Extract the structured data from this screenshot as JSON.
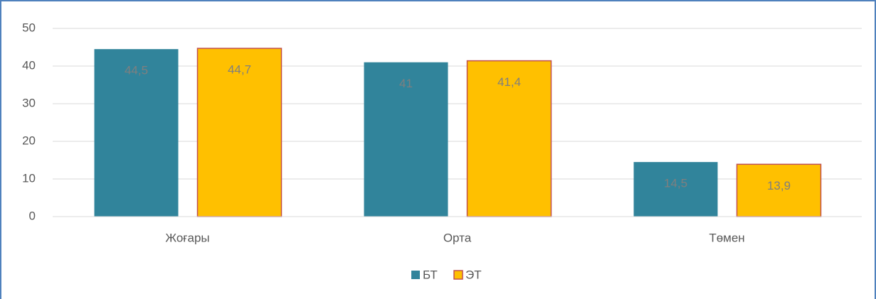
{
  "chart_data": {
    "type": "bar",
    "categories": [
      "Жоғары",
      "Орта",
      "Төмен"
    ],
    "series": [
      {
        "name": "БТ",
        "color": "#31849b",
        "values": [
          44.5,
          41,
          14.5
        ],
        "value_labels": [
          "44,5",
          "41",
          "14,5"
        ]
      },
      {
        "name": "ЭТ",
        "color": "#ffc000",
        "values": [
          44.7,
          41.4,
          13.9
        ],
        "value_labels": [
          "44,7",
          "41,4",
          "13,9"
        ]
      }
    ],
    "ylim": [
      0,
      50
    ],
    "yticks": [
      0,
      10,
      20,
      30,
      40,
      50
    ],
    "grid": true,
    "legend": "bottom"
  }
}
